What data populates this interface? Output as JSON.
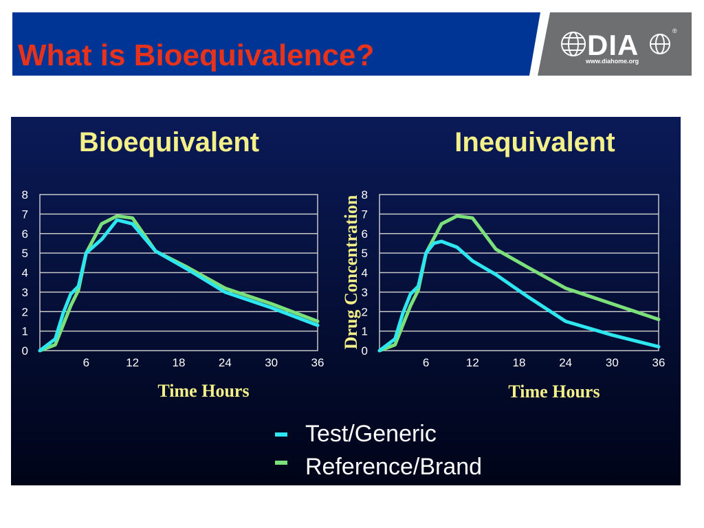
{
  "slide": {
    "title": "What is Bioequivalence?"
  },
  "logo": {
    "text": "DIA",
    "url": "www.diahome.org"
  },
  "colors": {
    "title": "#e8331c",
    "header_blue": "#003595",
    "header_gray": "#6e6f71",
    "chart_bg_top": "#0a1a57",
    "chart_bg_bottom": "#000418",
    "test": "#2ee6ef",
    "reference": "#7ce07a",
    "chart_text": "#f3f08a"
  },
  "legend": [
    {
      "label": "Test/Generic",
      "color": "#2ee6ef"
    },
    {
      "label": "Reference/Brand",
      "color": "#7ce07a"
    }
  ],
  "chart_data": [
    {
      "type": "line",
      "title": "Bioequivalent",
      "xlabel": "Time Hours",
      "ylabel": "",
      "xlim": [
        0,
        36
      ],
      "ylim": [
        0,
        8
      ],
      "xticks": [
        6,
        12,
        18,
        24,
        30,
        36
      ],
      "yticks": [
        0,
        1,
        2,
        3,
        4,
        5,
        6,
        7,
        8
      ],
      "grid": true,
      "series": [
        {
          "name": "Test/Generic",
          "color": "#2ee6ef",
          "x": [
            0,
            2,
            3,
            4,
            5,
            6,
            8,
            10,
            12,
            15,
            19,
            24,
            30,
            36
          ],
          "y": [
            0,
            0.6,
            1.9,
            2.9,
            3.3,
            5.0,
            5.7,
            6.7,
            6.5,
            5.1,
            4.2,
            3.0,
            2.2,
            1.3
          ]
        },
        {
          "name": "Reference/Brand",
          "color": "#7ce07a",
          "x": [
            0,
            2,
            3,
            4,
            5,
            6,
            8,
            10,
            12,
            15,
            19,
            24,
            30,
            36
          ],
          "y": [
            0,
            0.3,
            1.3,
            2.3,
            3.1,
            5.0,
            6.5,
            6.9,
            6.8,
            5.1,
            4.3,
            3.2,
            2.4,
            1.5
          ]
        }
      ]
    },
    {
      "type": "line",
      "title": "Inequivalent",
      "xlabel": "Time Hours",
      "ylabel": "Drug Concentration",
      "xlim": [
        0,
        36
      ],
      "ylim": [
        0,
        8
      ],
      "xticks": [
        6,
        12,
        18,
        24,
        30,
        36
      ],
      "yticks": [
        0,
        1,
        2,
        3,
        4,
        5,
        6,
        7,
        8
      ],
      "grid": true,
      "series": [
        {
          "name": "Test/Generic",
          "color": "#2ee6ef",
          "x": [
            0,
            2,
            3,
            4,
            5,
            6,
            7,
            8,
            10,
            12,
            15,
            19,
            24,
            30,
            36
          ],
          "y": [
            0,
            0.6,
            1.9,
            2.9,
            3.3,
            5.0,
            5.5,
            5.6,
            5.3,
            4.6,
            3.9,
            2.8,
            1.5,
            0.8,
            0.2
          ]
        },
        {
          "name": "Reference/Brand",
          "color": "#7ce07a",
          "x": [
            0,
            2,
            3,
            4,
            5,
            6,
            8,
            10,
            12,
            15,
            19,
            24,
            30,
            36
          ],
          "y": [
            0,
            0.3,
            1.3,
            2.3,
            3.1,
            5.0,
            6.5,
            6.9,
            6.8,
            5.2,
            4.3,
            3.2,
            2.4,
            1.6
          ]
        }
      ]
    }
  ]
}
